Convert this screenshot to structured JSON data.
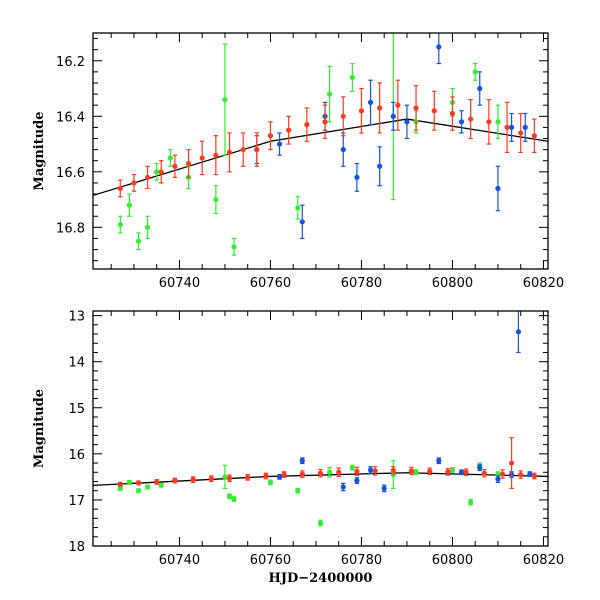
{
  "colors": {
    "green": "#33ee33",
    "blue": "#1155dd",
    "red": "#ff3b1f",
    "trend": "#000000",
    "frame": "#000000"
  },
  "chart_data": [
    {
      "type": "scatter",
      "panel": "top",
      "title": "",
      "xlabel": "",
      "ylabel": "Magnitude",
      "xlim": [
        60721,
        60821
      ],
      "ylim": [
        16.95,
        16.1
      ],
      "y_inverted": true,
      "grid": false,
      "xticks": [
        60740,
        60760,
        60780,
        60800,
        60820
      ],
      "xtick_labels": [
        "60740",
        "60760",
        "60780",
        "60800",
        "60820"
      ],
      "yticks": [
        16.2,
        16.4,
        16.6,
        16.8
      ],
      "ytick_labels": [
        "16.2",
        "16.4",
        "16.6",
        "16.8"
      ],
      "trend_line": {
        "x": [
          60721,
          60760,
          60790,
          60821
        ],
        "y": [
          16.685,
          16.49,
          16.41,
          16.49
        ]
      },
      "series": [
        {
          "color_key": "red",
          "x": [
            60727,
            60730,
            60733,
            60736,
            60739,
            60742,
            60745,
            60748,
            60751,
            60754,
            60757,
            60760,
            60764,
            60768,
            60772,
            60776,
            60780,
            60784,
            60788,
            60792,
            60796,
            60800,
            60804,
            60808,
            60812,
            60815,
            60818
          ],
          "y": [
            16.66,
            16.64,
            16.62,
            16.6,
            16.58,
            16.57,
            16.55,
            16.54,
            16.53,
            16.52,
            16.52,
            16.47,
            16.45,
            16.43,
            16.42,
            16.4,
            16.38,
            16.37,
            16.36,
            16.37,
            16.38,
            16.39,
            16.41,
            16.42,
            16.44,
            16.46,
            16.47
          ],
          "err": [
            0.03,
            0.03,
            0.04,
            0.04,
            0.04,
            0.05,
            0.06,
            0.07,
            0.07,
            0.06,
            0.06,
            0.05,
            0.05,
            0.06,
            0.06,
            0.07,
            0.08,
            0.09,
            0.09,
            0.08,
            0.07,
            0.06,
            0.07,
            0.08,
            0.09,
            0.07,
            0.06
          ]
        },
        {
          "color_key": "blue",
          "x": [
            60757,
            60762,
            60767,
            60772,
            60776,
            60779,
            60782,
            60784,
            60787,
            60790,
            60797,
            60802,
            60806,
            60810,
            60813,
            60816
          ],
          "y": [
            16.52,
            16.5,
            16.78,
            16.4,
            16.52,
            16.62,
            16.35,
            16.58,
            16.4,
            16.42,
            16.15,
            16.42,
            16.3,
            16.66,
            16.44,
            16.44
          ],
          "err": [
            0.05,
            0.04,
            0.06,
            0.05,
            0.06,
            0.05,
            0.08,
            0.07,
            0.05,
            0.06,
            0.06,
            0.04,
            0.06,
            0.08,
            0.05,
            0.05
          ]
        },
        {
          "color_key": "green",
          "x": [
            60727,
            60729,
            60731,
            60733,
            60735,
            60738,
            60742,
            60748,
            60750,
            60752,
            60766,
            60773,
            60778,
            60787,
            60792,
            60800,
            60805,
            60810
          ],
          "y": [
            16.79,
            16.72,
            16.85,
            16.8,
            16.6,
            16.55,
            16.62,
            16.7,
            16.34,
            16.87,
            16.73,
            16.32,
            16.26,
            16.4,
            16.42,
            16.35,
            16.24,
            16.42
          ],
          "err": [
            0.03,
            0.04,
            0.03,
            0.04,
            0.03,
            0.03,
            0.04,
            0.05,
            0.2,
            0.03,
            0.04,
            0.1,
            0.05,
            0.3,
            0.04,
            0.05,
            0.03,
            0.06
          ]
        }
      ]
    },
    {
      "type": "scatter",
      "panel": "bottom",
      "title": "",
      "xlabel": "HJD−2400000",
      "ylabel": "Magnitude",
      "xlim": [
        60721,
        60821
      ],
      "ylim": [
        18,
        12.9
      ],
      "y_inverted": true,
      "grid": false,
      "xticks": [
        60740,
        60760,
        60780,
        60800,
        60820
      ],
      "xtick_labels": [
        "60740",
        "60760",
        "60780",
        "60800",
        "60820"
      ],
      "yticks": [
        13,
        14,
        15,
        16,
        17,
        18
      ],
      "ytick_labels": [
        "13",
        "14",
        "15",
        "16",
        "17",
        "18"
      ],
      "trend_line": {
        "x": [
          60721,
          60760,
          60790,
          60821
        ],
        "y": [
          16.685,
          16.49,
          16.41,
          16.49
        ]
      },
      "series": [
        {
          "color_key": "red",
          "x": [
            60727,
            60731,
            60735,
            60739,
            60743,
            60747,
            60751,
            60755,
            60759,
            60763,
            60767,
            60771,
            60775,
            60779,
            60783,
            60787,
            60791,
            60795,
            60799,
            60803,
            60807,
            60811,
            60813,
            60815,
            60818
          ],
          "y": [
            16.66,
            16.63,
            16.61,
            16.58,
            16.56,
            16.54,
            16.53,
            16.51,
            16.48,
            16.45,
            16.44,
            16.42,
            16.4,
            16.38,
            16.37,
            16.36,
            16.37,
            16.38,
            16.39,
            16.4,
            16.42,
            16.44,
            16.2,
            16.45,
            16.48
          ],
          "err": [
            0.04,
            0.04,
            0.05,
            0.05,
            0.06,
            0.06,
            0.07,
            0.06,
            0.06,
            0.06,
            0.07,
            0.08,
            0.09,
            0.09,
            0.09,
            0.08,
            0.08,
            0.07,
            0.07,
            0.07,
            0.08,
            0.09,
            0.55,
            0.08,
            0.06
          ]
        },
        {
          "color_key": "blue",
          "x": [
            60762,
            60767,
            60776,
            60779,
            60782,
            60785,
            60797,
            60802,
            60806,
            60810,
            60813,
            60814.5,
            60817
          ],
          "y": [
            16.5,
            16.15,
            16.72,
            16.58,
            16.35,
            16.75,
            16.15,
            16.4,
            16.3,
            16.55,
            16.45,
            13.35,
            16.44
          ],
          "err": [
            0.05,
            0.06,
            0.08,
            0.06,
            0.07,
            0.07,
            0.06,
            0.05,
            0.06,
            0.07,
            0.06,
            0.45,
            0.05
          ]
        },
        {
          "color_key": "green",
          "x": [
            60727,
            60729,
            60731,
            60733,
            60736,
            60750,
            60751,
            60752,
            60760,
            60766,
            60771,
            60773,
            60778,
            60787,
            60792,
            60800,
            60804,
            60806,
            60810
          ],
          "y": [
            16.75,
            16.62,
            16.8,
            16.72,
            16.68,
            16.5,
            16.92,
            16.98,
            16.62,
            16.8,
            17.5,
            16.4,
            16.3,
            16.45,
            16.4,
            16.35,
            17.05,
            16.25,
            16.45
          ],
          "err": [
            0.04,
            0.04,
            0.04,
            0.04,
            0.04,
            0.25,
            0.05,
            0.05,
            0.05,
            0.05,
            0.06,
            0.1,
            0.05,
            0.3,
            0.05,
            0.05,
            0.06,
            0.05,
            0.06
          ]
        }
      ]
    }
  ]
}
